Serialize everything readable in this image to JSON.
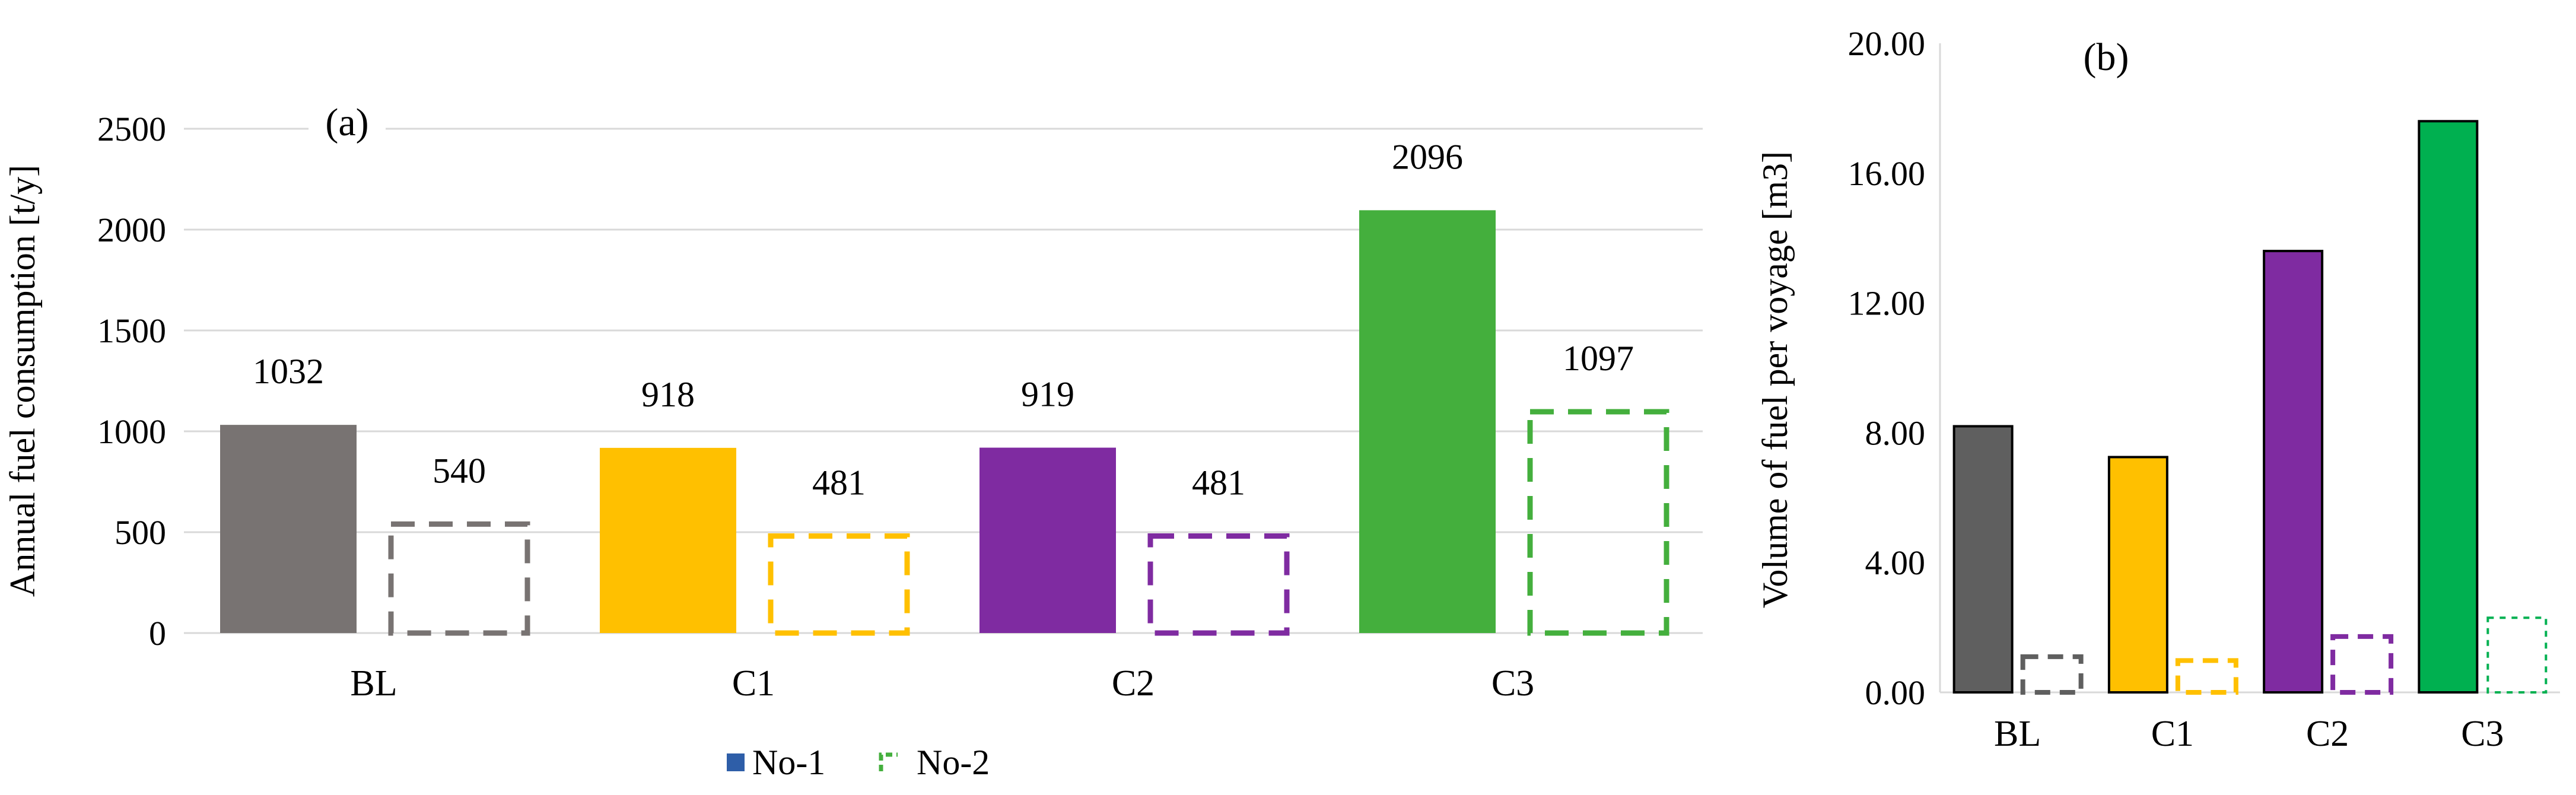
{
  "chart_data": [
    {
      "type": "bar",
      "panel_label": "(a)",
      "ylabel": "Annual fuel consumption [t/y]",
      "xlabel": "",
      "categories": [
        "BL",
        "C1",
        "C2",
        "C3"
      ],
      "ylim": [
        0,
        2500
      ],
      "yticks": [
        "0",
        "500",
        "1000",
        "1500",
        "2000",
        "2500"
      ],
      "grid": true,
      "legend_placement": "bottom",
      "series": [
        {
          "name": "No-1",
          "style": "solid",
          "values": [
            1032,
            918,
            919,
            2096
          ],
          "labels": [
            "1032",
            "918",
            "919",
            "2096"
          ]
        },
        {
          "name": "No-2",
          "style": "dashed",
          "values": [
            540,
            481,
            481,
            1097
          ],
          "labels": [
            "540",
            "481",
            "481",
            "1097"
          ]
        }
      ],
      "category_colors": [
        "#787372",
        "#FFC000",
        "#7F2BA1",
        "#44AF3D"
      ]
    },
    {
      "type": "bar",
      "panel_label": "(b)",
      "ylabel": "Volume of fuel per voyage [m3]",
      "xlabel": "",
      "categories": [
        "BL",
        "C1",
        "C2",
        "C3"
      ],
      "ylim": [
        0,
        20
      ],
      "yticks": [
        "0.00",
        "4.00",
        "8.00",
        "12.00",
        "16.00",
        "20.00"
      ],
      "grid": false,
      "series": [
        {
          "style": "solid",
          "values": [
            8.2,
            7.25,
            13.6,
            17.6
          ]
        },
        {
          "style": "dashed",
          "values": [
            1.1,
            0.98,
            1.72,
            2.3
          ]
        }
      ],
      "category_colors": [
        "#5F5F5F",
        "#FFC000",
        "#7F2BA1",
        "#00B050"
      ]
    }
  ],
  "legend": {
    "entries": [
      {
        "name": "No-1",
        "swatch": "solid",
        "color": "#2E5EA8"
      },
      {
        "name": "No-2",
        "swatch": "dashed",
        "color": "#44AF3D"
      }
    ]
  }
}
